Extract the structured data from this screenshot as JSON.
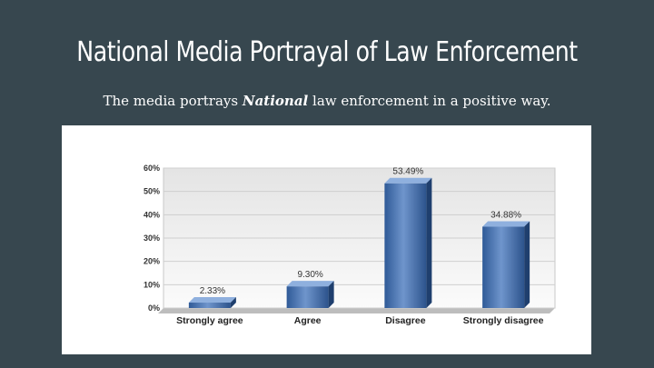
{
  "slide": {
    "title": "National Media Portrayal of Law Enforcement",
    "subtitle_before": "The media portrays ",
    "subtitle_emphasis": "National",
    "subtitle_after": " law enforcement in a positive way."
  },
  "chart_data": {
    "type": "bar",
    "categories": [
      "Strongly agree",
      "Agree",
      "Disagree",
      "Strongly disagree"
    ],
    "values": [
      2.33,
      9.3,
      53.49,
      34.88
    ],
    "value_labels": [
      "2.33%",
      "9.30%",
      "53.49%",
      "34.88%"
    ],
    "yticks": [
      0,
      10,
      20,
      30,
      40,
      50,
      60
    ],
    "ytick_labels": [
      "0%",
      "10%",
      "20%",
      "30%",
      "40%",
      "50%",
      "60%"
    ],
    "ylim": [
      0,
      60
    ],
    "grid": true,
    "bar_color": "#3f6aa8",
    "style": "3d"
  }
}
